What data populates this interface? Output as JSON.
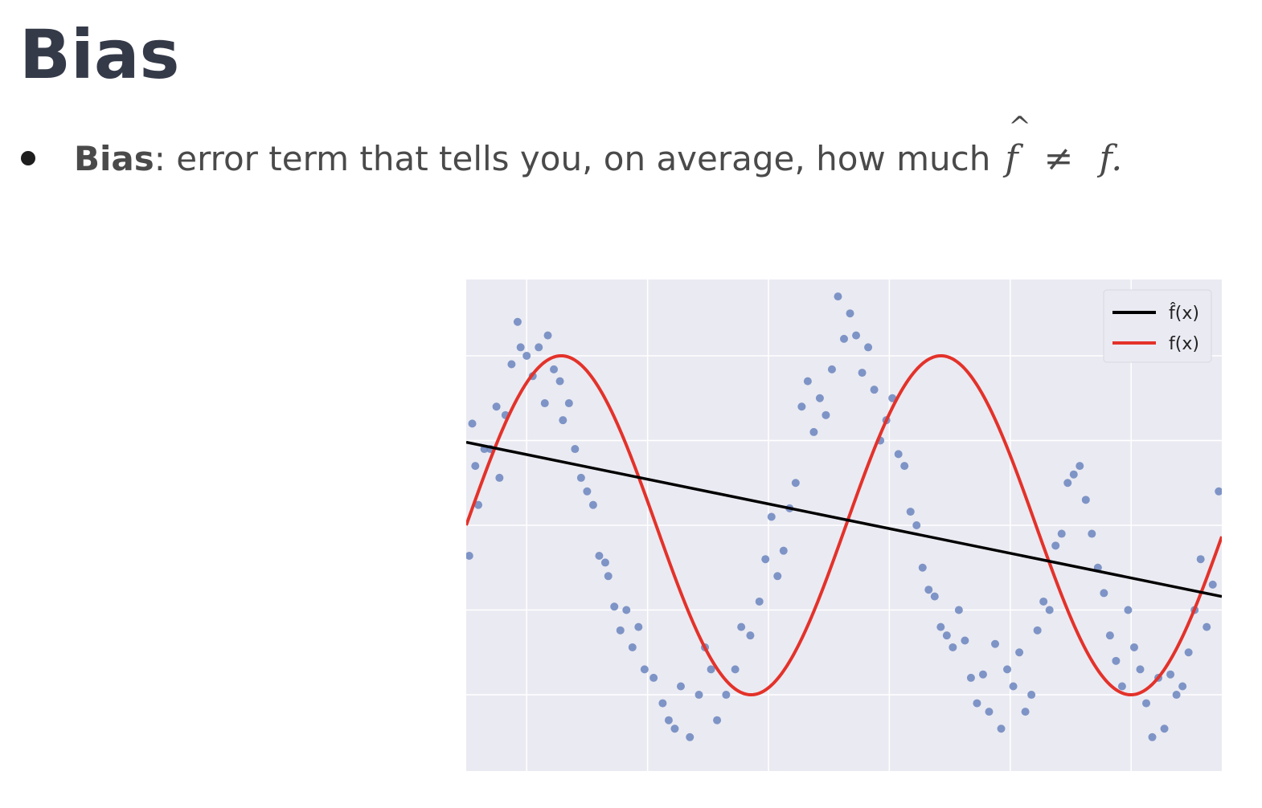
{
  "slide": {
    "title": "Bias",
    "bullet": {
      "term": "Bias",
      "text": ": error term that tells you, on average, how much",
      "math": {
        "lhs": "f",
        "hat": "^",
        "op": "≠",
        "rhs": "f",
        "end": "."
      }
    }
  },
  "chart_data": {
    "type": "scatter",
    "title": "",
    "xlabel": "",
    "ylabel": "",
    "tick_labels_visible": false,
    "grid": true,
    "background": "#eaeaf2",
    "xlim": [
      0,
      12.5
    ],
    "ylim": [
      -1.45,
      1.45
    ],
    "legend": {
      "placement": "top-right",
      "entries": [
        "f̂(x)",
        "f(x)"
      ]
    },
    "colors": {
      "points": "#6b85be",
      "fhat": "#000000",
      "f": "#e3322a"
    },
    "series": [
      {
        "name": "f̂(x)",
        "kind": "line",
        "x": [
          0,
          12.5
        ],
        "y": [
          0.49,
          -0.42
        ]
      },
      {
        "name": "f(x)",
        "kind": "line",
        "function": "sin",
        "x": [
          0,
          0.5,
          1,
          1.5,
          2,
          2.5,
          3,
          3.5,
          4,
          4.5,
          5,
          5.5,
          6,
          6.5,
          7,
          7.5,
          8,
          8.5,
          9,
          9.5,
          10,
          10.5,
          11,
          11.5,
          12,
          12.5
        ],
        "y": [
          0,
          0.48,
          0.84,
          1.0,
          0.91,
          0.6,
          0.14,
          -0.35,
          -0.76,
          -0.98,
          -0.96,
          -0.71,
          -0.28,
          0.22,
          0.66,
          0.94,
          0.99,
          0.8,
          0.41,
          -0.08,
          -0.54,
          -0.88,
          -1.0,
          -0.87,
          -0.54,
          -0.07
        ]
      },
      {
        "name": "",
        "kind": "scatter",
        "x": [
          0.05,
          0.1,
          0.15,
          0.2,
          0.3,
          0.4,
          0.5,
          0.55,
          0.65,
          0.75,
          0.85,
          0.9,
          1.0,
          1.1,
          1.2,
          1.3,
          1.35,
          1.45,
          1.55,
          1.6,
          1.7,
          1.8,
          1.9,
          2.0,
          2.1,
          2.2,
          2.3,
          2.35,
          2.45,
          2.55,
          2.65,
          2.75,
          2.85,
          2.95,
          3.1,
          3.25,
          3.35,
          3.45,
          3.55,
          3.7,
          3.85,
          3.95,
          4.05,
          4.15,
          4.3,
          4.45,
          4.55,
          4.7,
          4.85,
          4.95,
          5.05,
          5.15,
          5.25,
          5.35,
          5.45,
          5.55,
          5.65,
          5.75,
          5.85,
          5.95,
          6.05,
          6.15,
          6.25,
          6.35,
          6.45,
          6.55,
          6.65,
          6.75,
          6.85,
          6.95,
          7.05,
          7.15,
          7.25,
          7.35,
          7.45,
          7.55,
          7.65,
          7.75,
          7.85,
          7.95,
          8.05,
          8.15,
          8.25,
          8.35,
          8.45,
          8.55,
          8.65,
          8.75,
          8.85,
          8.95,
          9.05,
          9.15,
          9.25,
          9.35,
          9.45,
          9.55,
          9.65,
          9.75,
          9.85,
          9.95,
          10.05,
          10.15,
          10.25,
          10.35,
          10.45,
          10.55,
          10.65,
          10.75,
          10.85,
          10.95,
          11.05,
          11.15,
          11.25,
          11.35,
          11.45,
          11.55,
          11.65,
          11.75,
          11.85,
          11.95,
          12.05,
          12.15,
          12.25,
          12.35,
          12.45
        ],
        "y": [
          -0.18,
          0.6,
          0.35,
          0.12,
          0.45,
          0.45,
          0.7,
          0.28,
          0.65,
          0.95,
          1.2,
          1.05,
          1.0,
          0.88,
          1.05,
          0.72,
          1.12,
          0.92,
          0.85,
          0.62,
          0.72,
          0.45,
          0.28,
          0.2,
          0.12,
          -0.18,
          -0.22,
          -0.3,
          -0.48,
          -0.62,
          -0.5,
          -0.72,
          -0.6,
          -0.85,
          -0.9,
          -1.05,
          -1.15,
          -1.2,
          -0.95,
          -1.25,
          -1.0,
          -0.72,
          -0.85,
          -1.15,
          -1.0,
          -0.85,
          -0.6,
          -0.65,
          -0.45,
          -0.2,
          0.05,
          -0.3,
          -0.15,
          0.1,
          0.25,
          0.7,
          0.85,
          0.55,
          0.75,
          0.65,
          0.92,
          1.35,
          1.1,
          1.25,
          1.12,
          0.9,
          1.05,
          0.8,
          0.5,
          0.62,
          0.75,
          0.42,
          0.35,
          0.08,
          0.0,
          -0.25,
          -0.38,
          -0.42,
          -0.6,
          -0.65,
          -0.72,
          -0.5,
          -0.68,
          -0.9,
          -1.05,
          -0.88,
          -1.1,
          -0.7,
          -1.2,
          -0.85,
          -0.95,
          -0.75,
          -1.1,
          -1.0,
          -0.62,
          -0.45,
          -0.5,
          -0.12,
          -0.05,
          0.25,
          0.3,
          0.35,
          0.15,
          -0.05,
          -0.25,
          -0.4,
          -0.65,
          -0.8,
          -0.95,
          -0.5,
          -0.72,
          -0.85,
          -1.05,
          -1.25,
          -0.9,
          -1.2,
          -0.88,
          -1.0,
          -0.95,
          -0.75,
          -0.5,
          -0.2,
          -0.6,
          -0.35,
          0.2
        ]
      }
    ]
  }
}
